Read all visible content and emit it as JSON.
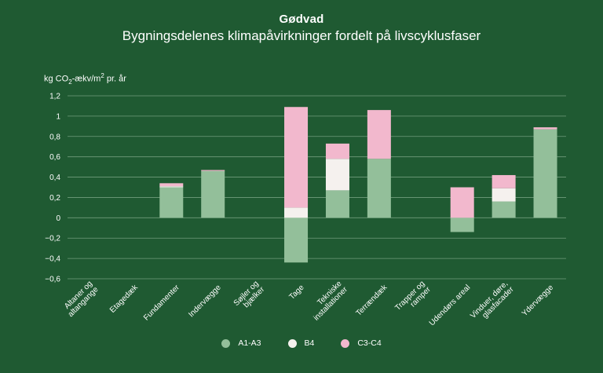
{
  "chart_data": {
    "type": "bar",
    "stacked": true,
    "title": "Gødvad",
    "subtitle": "Bygningsdelenes klimapåvirkninger fordelt på livscyklusfaser",
    "ylabel_parts": [
      "kg CO",
      "2",
      "-ækv/m",
      "2",
      " pr. år"
    ],
    "ylim": [
      -0.6,
      1.2
    ],
    "yticks": [
      1.2,
      1,
      0.8,
      0.6,
      0.4,
      0.2,
      0,
      -0.2,
      -0.4,
      -0.6
    ],
    "ytick_labels": [
      "1,2",
      "1",
      "0,8",
      "0,6",
      "0,4",
      "0,2",
      "0",
      "−0,2",
      "−0,4",
      "−0,6"
    ],
    "grid": true,
    "legend_position": "bottom",
    "categories": [
      "Altaner og altangange",
      "Etagedæk",
      "Fundamenter",
      "Indervægge",
      "Søjler og bjælker",
      "Tage",
      "Tekniske installationer",
      "Terrændæk",
      "Trapper og ramper",
      "Udendørs areal",
      "Vinduer, døre, glasfacader",
      "Ydervægge"
    ],
    "series": [
      {
        "name": "A1-A3",
        "color": "#93bf9a",
        "values": [
          0,
          0,
          0.3,
          0.46,
          0,
          -0.44,
          0.27,
          0.58,
          0,
          -0.14,
          0.16,
          0.87
        ]
      },
      {
        "name": "B4",
        "color": "#f5f1ee",
        "values": [
          0,
          0,
          0.01,
          0,
          0,
          0.1,
          0.31,
          0,
          0,
          0,
          0.13,
          0
        ]
      },
      {
        "name": "C3-C4",
        "color": "#f2b8cd",
        "values": [
          0,
          0,
          0.03,
          0.01,
          0,
          0.99,
          0.15,
          0.48,
          0,
          0.3,
          0.13,
          0.02
        ]
      }
    ]
  }
}
